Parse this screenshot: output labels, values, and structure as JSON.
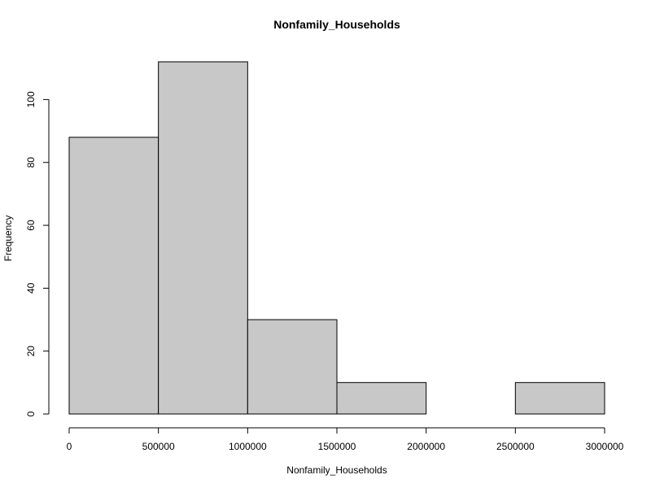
{
  "chart_data": {
    "type": "bar",
    "title": "Nonfamily_Households",
    "xlabel": "Nonfamily_Households",
    "ylabel": "Frequency",
    "bins": [
      {
        "start": 0,
        "end": 500000,
        "count": 88
      },
      {
        "start": 500000,
        "end": 1000000,
        "count": 112
      },
      {
        "start": 1000000,
        "end": 1500000,
        "count": 30
      },
      {
        "start": 1500000,
        "end": 2000000,
        "count": 10
      },
      {
        "start": 2000000,
        "end": 2500000,
        "count": 0
      },
      {
        "start": 2500000,
        "end": 3000000,
        "count": 10
      }
    ],
    "xlim": [
      0,
      3000000
    ],
    "ylim": [
      0,
      112
    ],
    "x_ticks": [
      0,
      500000,
      1000000,
      1500000,
      2000000,
      2500000,
      3000000
    ],
    "x_tick_labels": [
      "0",
      "500000",
      "1000000",
      "1500000",
      "2000000",
      "2500000",
      "3000000"
    ],
    "y_ticks": [
      0,
      20,
      40,
      60,
      80,
      100
    ],
    "y_tick_labels": [
      "0",
      "20",
      "40",
      "60",
      "80",
      "100"
    ],
    "bar_fill": "#c8c8c8",
    "bar_stroke": "#000000",
    "grid": false
  }
}
